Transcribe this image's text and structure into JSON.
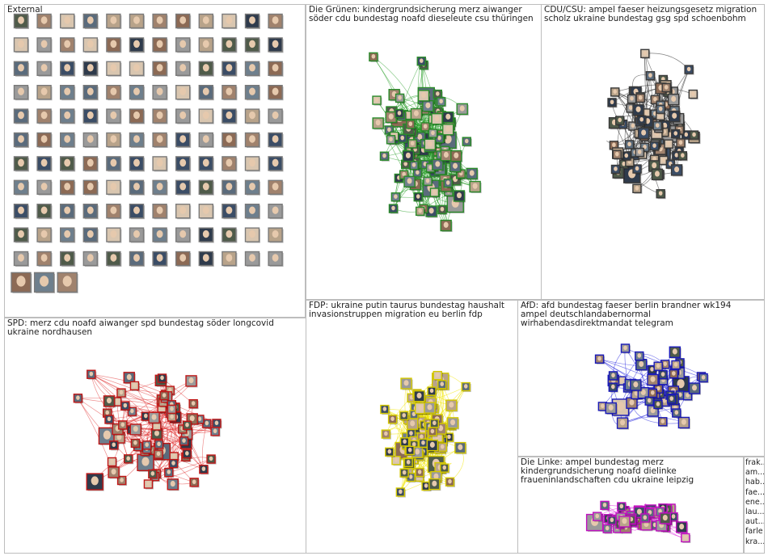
{
  "graph": {
    "groups": [
      {
        "id": "external",
        "title": "External",
        "edge_color": "#9e9e9e",
        "node_border": "#7a7a7a",
        "density": "none"
      },
      {
        "id": "gruene",
        "title": "Die Grünen: kindergrundsicherung merz aiwanger söder cdu bundestag noafd dieseleute csu thüringen",
        "edge_color": "#1f9a1f",
        "node_border": "#2a8a2a",
        "density": "high"
      },
      {
        "id": "cducsu",
        "title": "CDU/CSU: ampel faeser heizungsgesetz migration scholz ukraine bundestag gsg spd schoenbohm",
        "edge_color": "#2b2b2b",
        "node_border": "#3a3a3a",
        "density": "medium"
      },
      {
        "id": "spd",
        "title": "SPD: merz cdu noafd aiwanger spd bundestag söder longcovid ukraine nordhausen",
        "edge_color": "#e03030",
        "node_border": "#c01818",
        "density": "medium"
      },
      {
        "id": "fdp",
        "title": "FDP: ukraine putin taurus bundestag haushalt invasionstruppen migration eu berlin fdp",
        "edge_color": "#f2e600",
        "node_border": "#d4c800",
        "density": "high"
      },
      {
        "id": "afd",
        "title": "AfD: afd bundestag faeser berlin brandner wk194 ampel deutschlandabernormal wirhabendasdirektmandat telegram",
        "edge_color": "#2a2ae0",
        "node_border": "#1a1ab8",
        "density": "medium"
      },
      {
        "id": "linke",
        "title": "Die Linke: ampel bundestag merz kindergrundsicherung noafd dielinke fraueninlandschaften cdu ukraine leipzig",
        "edge_color": "#e020e0",
        "node_border": "#c010c0",
        "density": "medium"
      },
      {
        "id": "other",
        "title": "",
        "edge_color": "#9e9e9e",
        "node_border": "#7a7a7a",
        "density": "none"
      }
    ],
    "legend_items": [
      "frak...",
      "am...",
      "hab...",
      "fae...",
      "ene...",
      "lau...",
      "aut...",
      "farle",
      "kra..."
    ]
  }
}
